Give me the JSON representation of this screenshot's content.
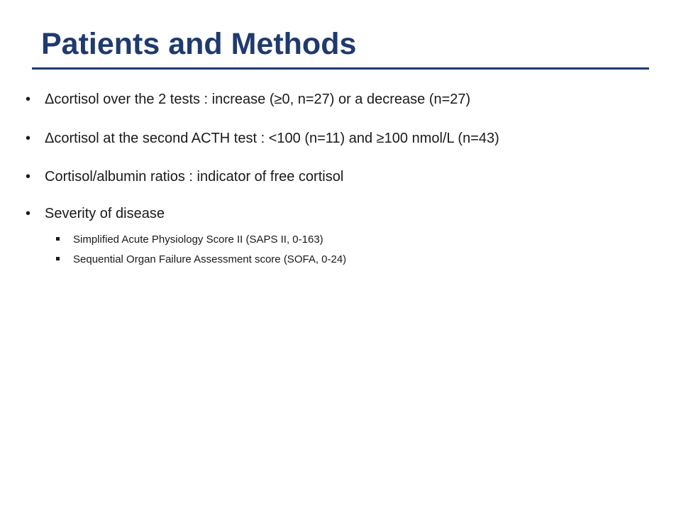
{
  "slide": {
    "title": "Patients and Methods",
    "bullets": [
      {
        "marker": "•",
        "text": "Δcortisol over the 2 tests : increase (≥0, n=27) or a decrease (n=27)"
      },
      {
        "marker": "•",
        "text": "Δcortisol  at the second ACTH test : <100 (n=11) and ≥100 nmol/L (n=43)"
      },
      {
        "marker": "•",
        "text": "Cortisol/albumin ratios : indicator of free cortisol"
      },
      {
        "marker": "•",
        "text": "Severity of disease"
      }
    ],
    "sub_bullets": [
      {
        "text": "Simplified Acute Physiology Score II (SAPS II, 0-163)"
      },
      {
        "text": "Sequential Organ Failure Assessment score (SOFA, 0-24)"
      }
    ]
  },
  "colors": {
    "title": "#1f3a6e",
    "rule": "#1f3a6e",
    "body_text": "#1a1a1a"
  }
}
